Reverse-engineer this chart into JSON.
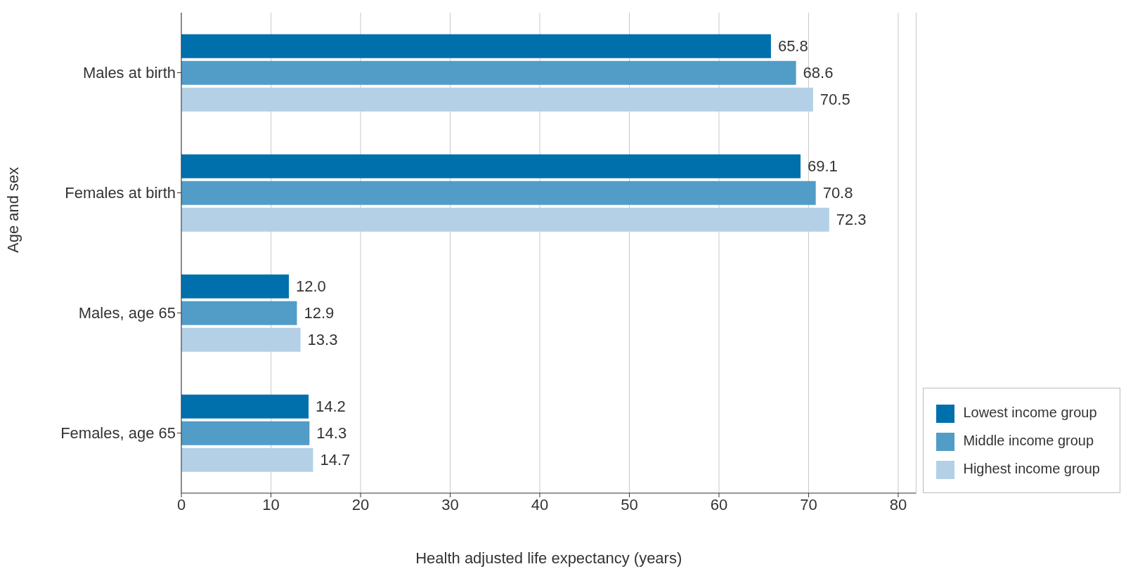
{
  "chart_data": {
    "type": "bar",
    "orientation": "horizontal",
    "xlabel": "Health adjusted life expectancy (years)",
    "ylabel": "Age and sex",
    "categories": [
      "Males at birth",
      "Females at birth",
      "Males, age 65",
      "Females, age 65"
    ],
    "series": [
      {
        "name": "Lowest income group",
        "color": "#0070ad",
        "values": [
          65.8,
          69.1,
          12.0,
          14.2
        ],
        "value_labels": [
          "65.8",
          "69.1",
          "12.0",
          "14.2"
        ]
      },
      {
        "name": "Middle income group",
        "color": "#529cc8",
        "values": [
          68.6,
          70.8,
          12.9,
          14.3
        ],
        "value_labels": [
          "68.6",
          "70.8",
          "12.9",
          "14.3"
        ]
      },
      {
        "name": "Highest income group",
        "color": "#b3d0e6",
        "values": [
          70.5,
          72.3,
          13.3,
          14.7
        ],
        "value_labels": [
          "70.5",
          "72.3",
          "13.3",
          "14.7"
        ]
      }
    ],
    "xlim": [
      0,
      82
    ],
    "xticks": [
      0,
      10,
      20,
      30,
      40,
      50,
      60,
      70,
      80
    ],
    "grid": "x",
    "legend": "bottom right"
  }
}
